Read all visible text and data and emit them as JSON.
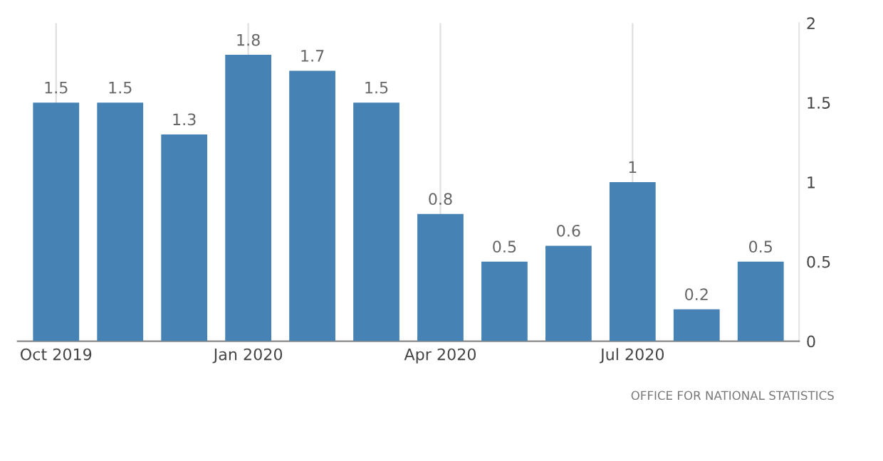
{
  "chart_data": {
    "type": "bar",
    "categories": [
      "Oct 2019",
      null,
      null,
      "Jan 2020",
      null,
      null,
      "Apr 2020",
      null,
      null,
      "Jul 2020",
      null,
      null
    ],
    "values": [
      1.5,
      1.5,
      1.3,
      1.8,
      1.7,
      1.5,
      0.8,
      0.5,
      0.6,
      1,
      0.2,
      0.5
    ],
    "color": "#4682b4",
    "ylim": [
      0,
      2
    ],
    "yticks": [
      0,
      0.5,
      1,
      1.5,
      2
    ],
    "grid": "x",
    "data_labels": true,
    "annotations": [
      "OFFICE FOR NATIONAL STATISTICS"
    ]
  }
}
